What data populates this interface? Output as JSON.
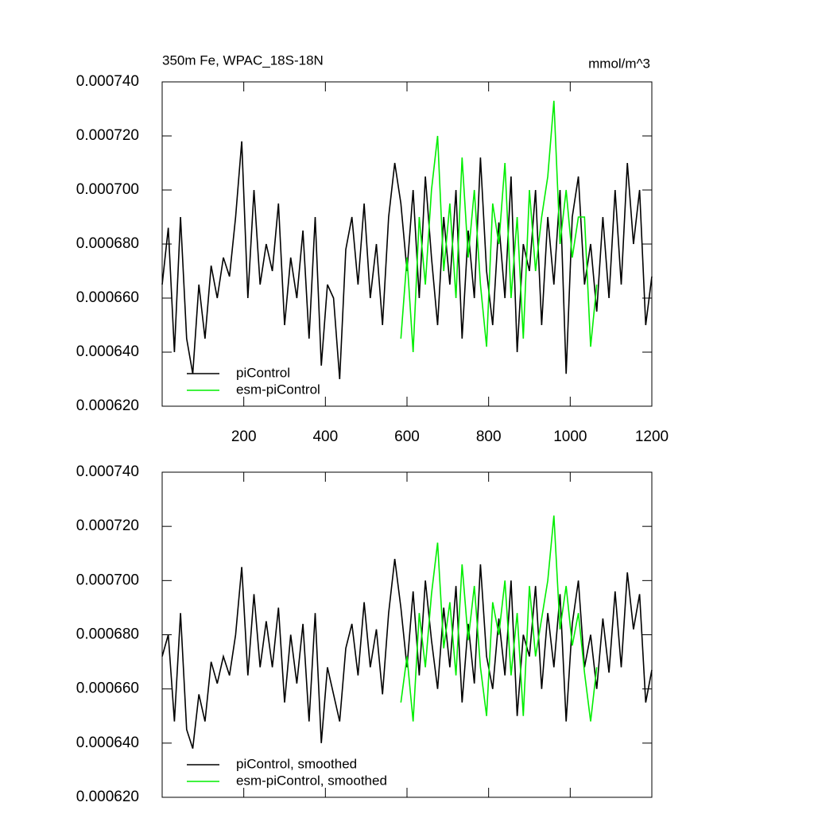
{
  "chart_data": [
    {
      "type": "line",
      "title": "350m Fe, WPAC_18S-18N",
      "units": "mmol/m^3",
      "xlim": [
        0,
        1200
      ],
      "xticks": [
        200,
        400,
        600,
        800,
        1000,
        1200
      ],
      "ylim": [
        0.00062,
        0.00074
      ],
      "yticks": [
        {
          "value": 0.00062,
          "label": "0.000620"
        },
        {
          "value": 0.00064,
          "label": "0.000640"
        },
        {
          "value": 0.00066,
          "label": "0.000660"
        },
        {
          "value": 0.00068,
          "label": "0.000680"
        },
        {
          "value": 0.0007,
          "label": "0.000700"
        },
        {
          "value": 0.00072,
          "label": "0.000720"
        },
        {
          "value": 0.00074,
          "label": "0.000740"
        }
      ],
      "legend": "lower left",
      "series": [
        {
          "name": "piControl",
          "color": "#000000",
          "x": [
            0,
            15,
            30,
            45,
            60,
            75,
            90,
            105,
            120,
            135,
            150,
            165,
            180,
            195,
            210,
            225,
            240,
            255,
            270,
            285,
            300,
            315,
            330,
            345,
            360,
            375,
            390,
            405,
            420,
            435,
            450,
            465,
            480,
            495,
            510,
            525,
            540,
            555,
            570,
            585,
            600,
            615,
            630,
            645,
            660,
            675,
            690,
            705,
            720,
            735,
            750,
            765,
            780,
            795,
            810,
            825,
            840,
            855,
            870,
            885,
            900,
            915,
            930,
            945,
            960,
            975,
            990,
            1005,
            1020,
            1035,
            1050,
            1065,
            1080,
            1095,
            1110,
            1125,
            1140,
            1155,
            1170,
            1185,
            1200
          ],
          "values": [
            0.000665,
            0.000686,
            0.00064,
            0.00069,
            0.000645,
            0.000632,
            0.000665,
            0.000645,
            0.000672,
            0.00066,
            0.000675,
            0.000668,
            0.00069,
            0.000718,
            0.00066,
            0.0007,
            0.000665,
            0.00068,
            0.00067,
            0.000695,
            0.00065,
            0.000675,
            0.00066,
            0.000685,
            0.000645,
            0.00069,
            0.000635,
            0.000665,
            0.00066,
            0.00063,
            0.000678,
            0.00069,
            0.000665,
            0.000695,
            0.00066,
            0.00068,
            0.00065,
            0.00069,
            0.00071,
            0.000695,
            0.00067,
            0.0007,
            0.00066,
            0.000705,
            0.000675,
            0.00065,
            0.00069,
            0.000665,
            0.0007,
            0.000645,
            0.000685,
            0.00066,
            0.000712,
            0.00067,
            0.00065,
            0.000688,
            0.00066,
            0.000705,
            0.00064,
            0.00068,
            0.00067,
            0.0007,
            0.00065,
            0.00069,
            0.000665,
            0.0007,
            0.000632,
            0.00069,
            0.000705,
            0.000665,
            0.00068,
            0.000655,
            0.00069,
            0.00066,
            0.0007,
            0.000665,
            0.00071,
            0.00068,
            0.0007,
            0.00065,
            0.000668
          ]
        },
        {
          "name": "esm-piControl",
          "color": "#00ee00",
          "x": [
            585,
            600,
            615,
            630,
            645,
            660,
            675,
            690,
            705,
            720,
            735,
            750,
            765,
            780,
            795,
            810,
            825,
            840,
            855,
            870,
            885,
            900,
            915,
            930,
            945,
            960,
            975,
            990,
            1005,
            1020,
            1035,
            1050,
            1065
          ],
          "values": [
            0.000645,
            0.000675,
            0.00064,
            0.00069,
            0.000665,
            0.0007,
            0.00072,
            0.00067,
            0.000695,
            0.00066,
            0.000712,
            0.000675,
            0.0007,
            0.000665,
            0.000642,
            0.000695,
            0.00068,
            0.00071,
            0.00066,
            0.00069,
            0.000645,
            0.0007,
            0.00067,
            0.00069,
            0.000705,
            0.000733,
            0.00068,
            0.0007,
            0.000675,
            0.00069,
            0.00069,
            0.000642,
            0.000665
          ]
        }
      ]
    },
    {
      "type": "line",
      "xlim": [
        0,
        1200
      ],
      "xticks": [
        200,
        400,
        600,
        800,
        1000,
        1200
      ],
      "ylim": [
        0.00062,
        0.00074
      ],
      "yticks": [
        {
          "value": 0.00062,
          "label": "0.000620"
        },
        {
          "value": 0.00064,
          "label": "0.000640"
        },
        {
          "value": 0.00066,
          "label": "0.000660"
        },
        {
          "value": 0.00068,
          "label": "0.000680"
        },
        {
          "value": 0.0007,
          "label": "0.000700"
        },
        {
          "value": 0.00072,
          "label": "0.000720"
        },
        {
          "value": 0.00074,
          "label": "0.000740"
        }
      ],
      "legend": "lower left",
      "series": [
        {
          "name": "piControl, smoothed",
          "color": "#000000",
          "x": [
            0,
            15,
            30,
            45,
            60,
            75,
            90,
            105,
            120,
            135,
            150,
            165,
            180,
            195,
            210,
            225,
            240,
            255,
            270,
            285,
            300,
            315,
            330,
            345,
            360,
            375,
            390,
            405,
            420,
            435,
            450,
            465,
            480,
            495,
            510,
            525,
            540,
            555,
            570,
            585,
            600,
            615,
            630,
            645,
            660,
            675,
            690,
            705,
            720,
            735,
            750,
            765,
            780,
            795,
            810,
            825,
            840,
            855,
            870,
            885,
            900,
            915,
            930,
            945,
            960,
            975,
            990,
            1005,
            1020,
            1035,
            1050,
            1065,
            1080,
            1095,
            1110,
            1125,
            1140,
            1155,
            1170,
            1185,
            1200
          ],
          "values": [
            0.000672,
            0.00068,
            0.000648,
            0.000688,
            0.000645,
            0.000638,
            0.000658,
            0.000648,
            0.00067,
            0.000662,
            0.000672,
            0.000665,
            0.00068,
            0.000705,
            0.000665,
            0.000695,
            0.000668,
            0.000685,
            0.000668,
            0.00069,
            0.000655,
            0.00068,
            0.000662,
            0.000684,
            0.000648,
            0.000688,
            0.00064,
            0.000668,
            0.000658,
            0.000648,
            0.000675,
            0.000684,
            0.000665,
            0.000692,
            0.000668,
            0.000682,
            0.000658,
            0.000688,
            0.000708,
            0.00069,
            0.000668,
            0.000696,
            0.000665,
            0.0007,
            0.000678,
            0.00066,
            0.00069,
            0.000668,
            0.000698,
            0.000655,
            0.000684,
            0.000662,
            0.000706,
            0.000672,
            0.00066,
            0.000686,
            0.000665,
            0.0007,
            0.00065,
            0.00068,
            0.000672,
            0.000698,
            0.00066,
            0.000688,
            0.000668,
            0.000695,
            0.000648,
            0.000684,
            0.0007,
            0.000668,
            0.00068,
            0.00066,
            0.000686,
            0.000666,
            0.000696,
            0.000668,
            0.000703,
            0.000682,
            0.000695,
            0.000655,
            0.000667
          ]
        },
        {
          "name": "esm-piControl, smoothed",
          "color": "#00ee00",
          "x": [
            585,
            600,
            615,
            630,
            645,
            660,
            675,
            690,
            705,
            720,
            735,
            750,
            765,
            780,
            795,
            810,
            825,
            840,
            855,
            870,
            885,
            900,
            915,
            930,
            945,
            960,
            975,
            990,
            1005,
            1020,
            1035,
            1050,
            1065
          ],
          "values": [
            0.000655,
            0.000672,
            0.000648,
            0.000688,
            0.000668,
            0.000695,
            0.000714,
            0.000675,
            0.000692,
            0.000665,
            0.000706,
            0.000678,
            0.000698,
            0.000668,
            0.00065,
            0.000692,
            0.00068,
            0.0007,
            0.000665,
            0.000688,
            0.00065,
            0.000698,
            0.000672,
            0.000686,
            0.0007,
            0.000724,
            0.000682,
            0.000698,
            0.000676,
            0.000688,
            0.000666,
            0.000648,
            0.000668
          ]
        }
      ]
    }
  ]
}
